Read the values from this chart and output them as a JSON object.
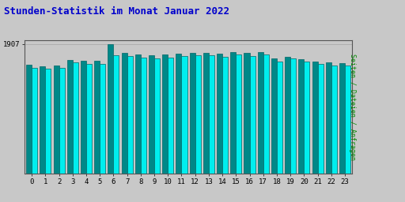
{
  "title": "Stunden-Statistik im Monat Januar 2022",
  "title_color": "#0000cc",
  "title_fontsize": 9,
  "ylabel_right": "Seiten / Dateien / Anfragen",
  "ylabel_right_color": "#008800",
  "background_color": "#c8c8c8",
  "plot_bg_color": "#c8c8c8",
  "hours": [
    0,
    1,
    2,
    3,
    4,
    5,
    6,
    7,
    8,
    9,
    10,
    11,
    12,
    13,
    14,
    15,
    16,
    17,
    18,
    19,
    20,
    21,
    22,
    23
  ],
  "bar1_values": [
    1600,
    1578,
    1588,
    1672,
    1655,
    1662,
    1907,
    1772,
    1752,
    1738,
    1752,
    1762,
    1778,
    1778,
    1762,
    1788,
    1772,
    1785,
    1695,
    1718,
    1680,
    1650,
    1632,
    1625
  ],
  "bar2_values": [
    1558,
    1542,
    1552,
    1632,
    1612,
    1620,
    1742,
    1732,
    1712,
    1695,
    1712,
    1732,
    1742,
    1742,
    1722,
    1748,
    1735,
    1748,
    1652,
    1692,
    1652,
    1612,
    1592,
    1592
  ],
  "bar1_color": "#008888",
  "bar2_color": "#00eeee",
  "bar_edge_color": "#006666",
  "ymax": 1960,
  "ytick_value": 1907,
  "ytick_label": "1907",
  "hline_color": "#aaaaaa",
  "font_family": "monospace",
  "tick_fontsize": 6.5
}
